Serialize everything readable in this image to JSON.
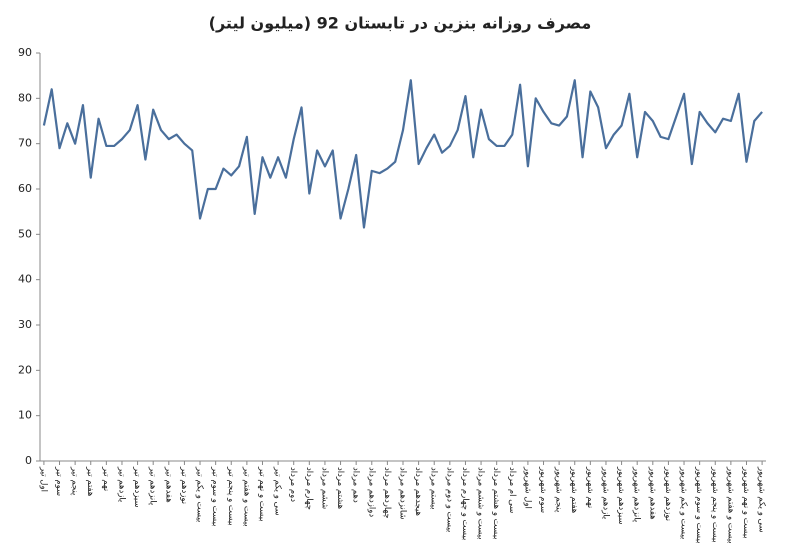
{
  "chart_data": {
    "type": "line",
    "title": "مصرف روزانه بنزین در تابستان 92 (میلیون لیتر)",
    "categories": [
      "اول تیر",
      null,
      "سوم تیر",
      null,
      "پنجم تیر",
      null,
      "هفتم تیر",
      null,
      "نهم تیر",
      null,
      "یازدهم تیر",
      null,
      "سیزدهم تیر",
      null,
      "پانزدهم تیر",
      null,
      "هفدهم تیر",
      null,
      "نوزدهم تیر",
      null,
      "بیست و یکم تیر",
      null,
      "بیست و سوم تیر",
      null,
      "بیست و پنجم تیر",
      null,
      "بیست و هفتم تیر",
      null,
      "بیست و نهم تیر",
      null,
      "سی و یکم تیر",
      null,
      "دوم مرداد",
      null,
      "چهارم مرداد",
      null,
      "ششم مرداد",
      null,
      "هشتم مرداد",
      null,
      "دهم مرداد",
      null,
      "دوازدهم مرداد",
      null,
      "چهاردهم مرداد",
      null,
      "شانزدهم مرداد",
      null,
      "هیجدهم مرداد",
      null,
      "بیستم مرداد",
      null,
      "بیست و دوم مرداد",
      null,
      "بیست و چهارم مرداد",
      null,
      "بیست و ششم مرداد",
      null,
      "بیست و هشتم مرداد",
      null,
      "سی ام مرداد",
      null,
      "اول شهریور",
      null,
      "سوم شهریور",
      null,
      "پنجم شهریور",
      null,
      "هفتم شهریور",
      null,
      "نهم شهریور",
      null,
      "یازدهم شهریور",
      null,
      "سیزدهم شهریور",
      null,
      "پانزدهم شهریور",
      null,
      "هفدهم شهریور",
      null,
      "نوزدهم شهریور",
      null,
      "بیست و یکم شهریور",
      null,
      "بیست و سوم شهریور",
      null,
      "بیست و پنجم شهریور",
      null,
      "بیست و هفتم شهریور",
      null,
      "بیست و نهم شهریور",
      null,
      "سی و یکم شهریور"
    ],
    "series": [
      {
        "name": "مصرف روزانه",
        "color": "#4a6f9c",
        "values": [
          74,
          82,
          69,
          74.5,
          70,
          78.5,
          62.5,
          75.5,
          69.5,
          69.5,
          71,
          73,
          78.5,
          66.5,
          77.5,
          73,
          71,
          72,
          70,
          68.5,
          53.5,
          60,
          60,
          64.5,
          63,
          65,
          71.5,
          54.5,
          67,
          62.5,
          67,
          62.5,
          71,
          78,
          59,
          68.5,
          65,
          68.5,
          53.5,
          60,
          67.5,
          51.5,
          64,
          63.5,
          64.5,
          66,
          73,
          84,
          65.5,
          69,
          72,
          68,
          69.5,
          73,
          80.5,
          67,
          77.5,
          71,
          69.5,
          69.5,
          72,
          83,
          65,
          80,
          77,
          74.5,
          74,
          76,
          84,
          67,
          81.5,
          78,
          69,
          72,
          74,
          81,
          67,
          77,
          75,
          71.5,
          71,
          76,
          81,
          65.5,
          77,
          74.5,
          72.5,
          75.5,
          75,
          81,
          66,
          75,
          77
        ]
      }
    ],
    "ylim": [
      0,
      90
    ],
    "yticks": [
      0,
      10,
      20,
      30,
      40,
      50,
      60,
      70,
      80,
      90
    ],
    "grid": false
  }
}
